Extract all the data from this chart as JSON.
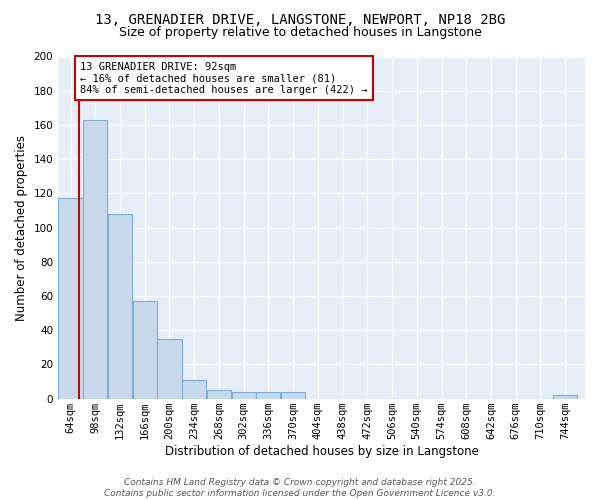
{
  "title_line1": "13, GRENADIER DRIVE, LANGSTONE, NEWPORT, NP18 2BG",
  "title_line2": "Size of property relative to detached houses in Langstone",
  "xlabel": "Distribution of detached houses by size in Langstone",
  "ylabel": "Number of detached properties",
  "bins_left": [
    64,
    98,
    132,
    166,
    200,
    234,
    268,
    302,
    336,
    370,
    404,
    438,
    472,
    506,
    540,
    574,
    608,
    642,
    676,
    710,
    744
  ],
  "bin_width": 34,
  "values": [
    117,
    163,
    108,
    57,
    35,
    11,
    5,
    4,
    4,
    4,
    0,
    0,
    0,
    0,
    0,
    0,
    0,
    0,
    0,
    0,
    2
  ],
  "bar_color": "#c9d9ec",
  "bar_edge_color": "#7aadd4",
  "red_line_x": 92,
  "annotation_line1": "13 GRENADIER DRIVE: 92sqm",
  "annotation_line2": "← 16% of detached houses are smaller (81)",
  "annotation_line3": "84% of semi-detached houses are larger (422) →",
  "annotation_box_color": "white",
  "annotation_box_edge_color": "#cc0000",
  "ylim_max": 200,
  "yticks": [
    0,
    20,
    40,
    60,
    80,
    100,
    120,
    140,
    160,
    180,
    200
  ],
  "background_color": "#e8eef8",
  "grid_color": "#ffffff",
  "footer_line1": "Contains HM Land Registry data © Crown copyright and database right 2025.",
  "footer_line2": "Contains public sector information licensed under the Open Government Licence v3.0.",
  "title_fontsize": 10,
  "subtitle_fontsize": 9,
  "axis_label_fontsize": 8.5,
  "tick_fontsize": 7.5,
  "annotation_fontsize": 7.5,
  "footer_fontsize": 6.5
}
